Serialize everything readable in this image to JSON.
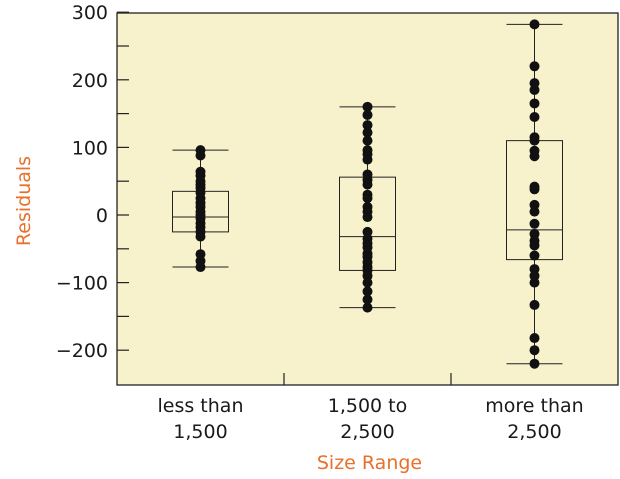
{
  "colors": {
    "plot_background": "#f7f1cc",
    "axis_title": "#e8702a",
    "marks": "#111111"
  },
  "chart_data": {
    "type": "box",
    "xlabel": "Size Range",
    "ylabel": "Residuals",
    "ylim": [
      -250,
      300
    ],
    "yticks": [
      -200,
      -100,
      0,
      100,
      200,
      300
    ],
    "yticklabels": [
      "−200",
      "−100",
      "0",
      "100",
      "200",
      "300"
    ],
    "minor_yticks": [
      -150,
      -50,
      50,
      150,
      250
    ],
    "categories": [
      {
        "line1": "less than",
        "line2": "1,500"
      },
      {
        "line1": "1,500 to",
        "line2": "2,500"
      },
      {
        "line1": "more than",
        "line2": "2,500"
      }
    ],
    "boxes": [
      {
        "min": -77,
        "q1": -25,
        "median": -3,
        "q3": 35,
        "max": 96
      },
      {
        "min": -137,
        "q1": -82,
        "median": -32,
        "q3": 56,
        "max": 160
      },
      {
        "min": -220,
        "q1": -66,
        "median": -22,
        "q3": 110,
        "max": 282
      }
    ],
    "points": [
      [
        96,
        88,
        64,
        58,
        50,
        45,
        40,
        33,
        25,
        18,
        12,
        5,
        0,
        -5,
        -12,
        -18,
        -25,
        -32,
        -58,
        -68,
        -77
      ],
      [
        160,
        148,
        133,
        122,
        110,
        96,
        90,
        82,
        60,
        52,
        45,
        30,
        25,
        12,
        5,
        -3,
        -25,
        -35,
        -42,
        -48,
        -57,
        -62,
        -70,
        -77,
        -82,
        -90,
        -100,
        -113,
        -125,
        -137
      ],
      [
        282,
        220,
        195,
        185,
        165,
        145,
        115,
        110,
        95,
        87,
        42,
        38,
        15,
        5,
        -13,
        -28,
        -38,
        -45,
        -60,
        -80,
        -90,
        -100,
        -133,
        -182,
        -200,
        -220
      ]
    ]
  }
}
